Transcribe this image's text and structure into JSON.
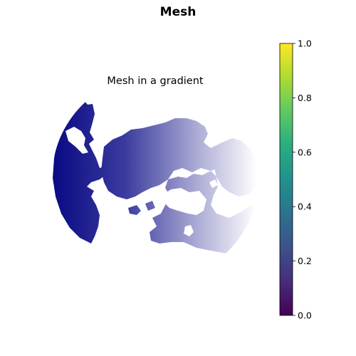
{
  "figure_title": "Mesh",
  "chart_data": {
    "type": "heatmap",
    "title": "Mesh in a gradient",
    "projection": "north-polar-stereographic",
    "gradient": {
      "from_color": "#0a0a85",
      "to_color": "#ffffff",
      "direction": "left-to-right"
    },
    "colorbar": {
      "colormap": "viridis",
      "range": [
        0.0,
        1.0
      ],
      "tick_values": [
        0.0,
        0.2,
        0.4,
        0.6,
        0.8,
        1.0
      ],
      "tick_labels": [
        "0.0",
        "0.2",
        "0.4",
        "0.6",
        "0.8",
        "1.0"
      ],
      "placement": "right"
    }
  }
}
